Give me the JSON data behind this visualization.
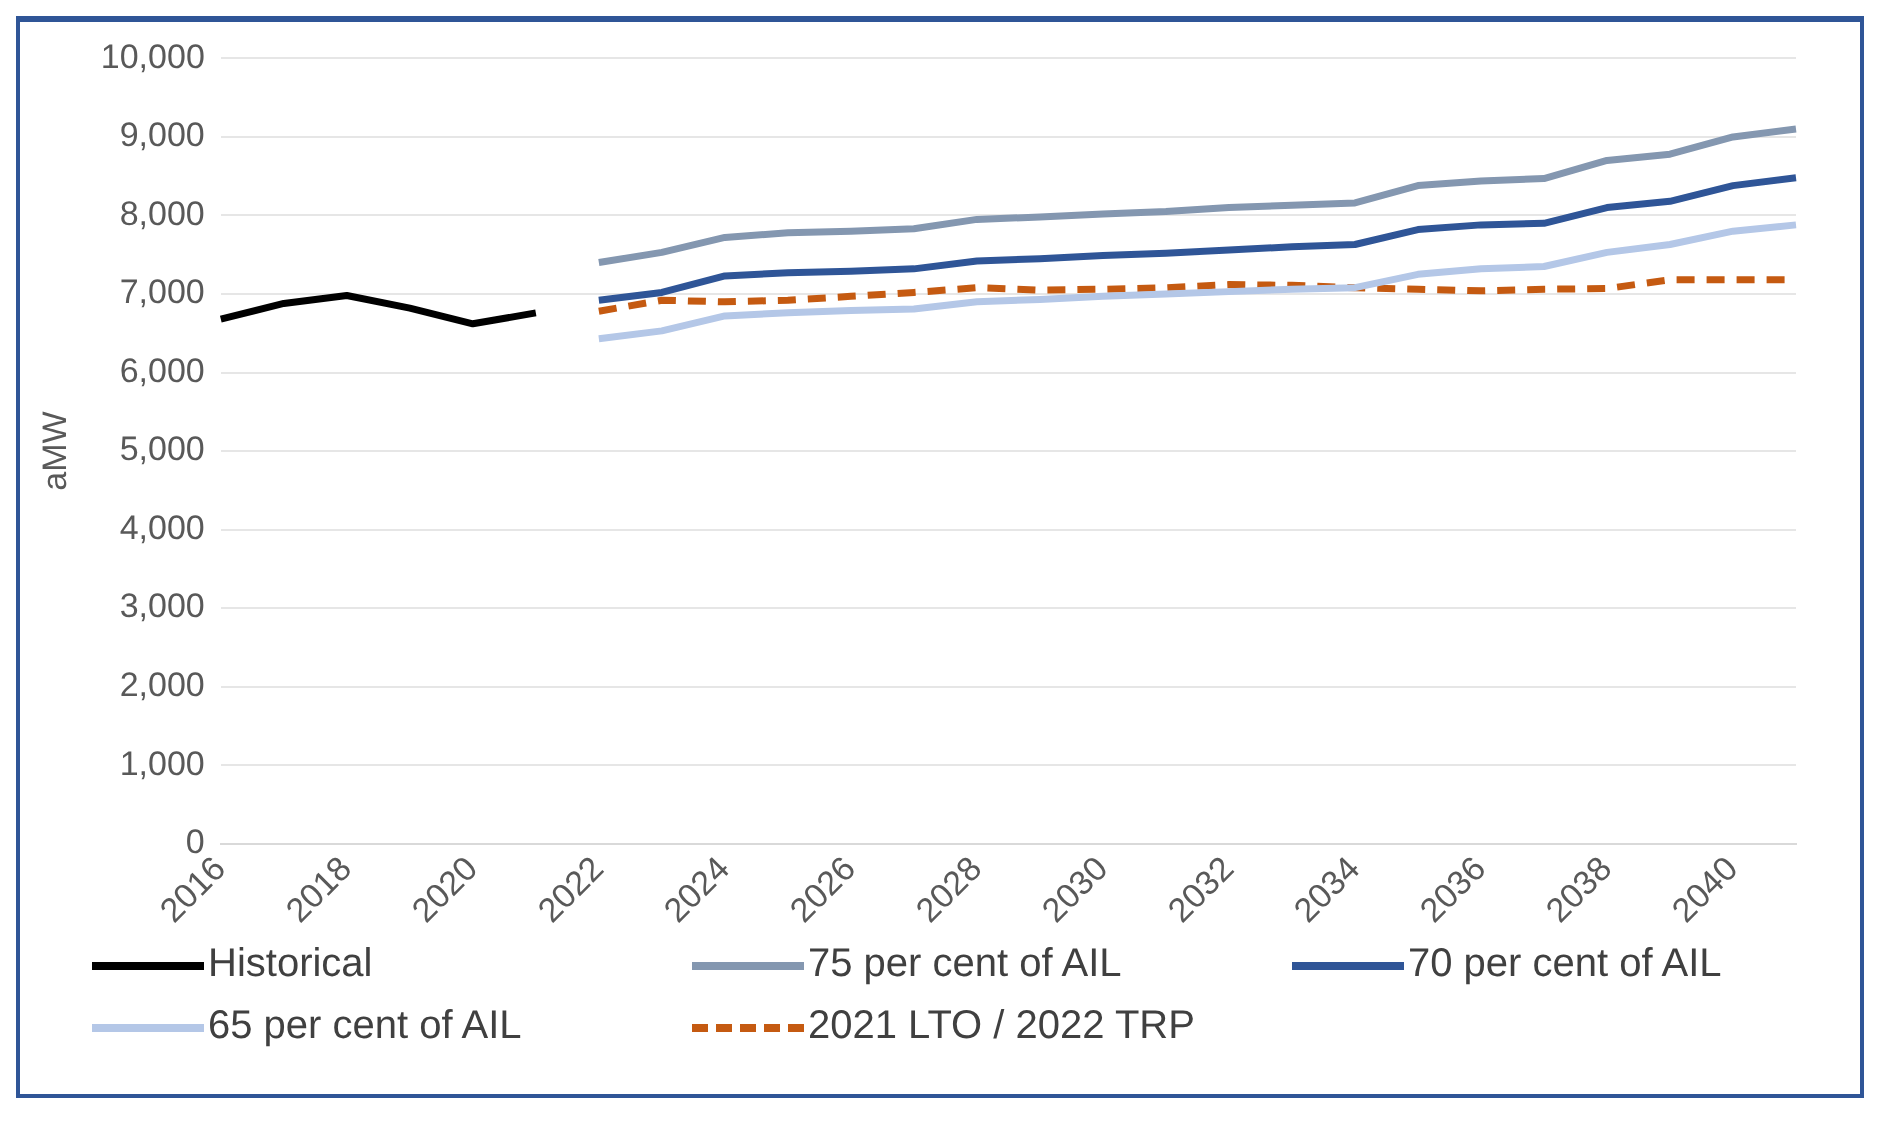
{
  "chart_data": {
    "type": "line",
    "ylabel": "aMW",
    "categories": [
      "2016",
      null,
      "2018",
      null,
      "2020",
      null,
      "2022",
      null,
      "2024",
      null,
      "2026",
      null,
      "2028",
      null,
      "2030",
      null,
      "2032",
      null,
      "2034",
      null,
      "2036",
      null,
      "2038",
      null,
      "2040",
      null
    ],
    "ylim": [
      0,
      10000
    ],
    "yticks": [
      {
        "value": 0,
        "label": "0"
      },
      {
        "value": 1000,
        "label": "1,000"
      },
      {
        "value": 2000,
        "label": "2,000"
      },
      {
        "value": 3000,
        "label": "3,000"
      },
      {
        "value": 4000,
        "label": "4,000"
      },
      {
        "value": 5000,
        "label": "5,000"
      },
      {
        "value": 6000,
        "label": "6,000"
      },
      {
        "value": 7000,
        "label": "7,000"
      },
      {
        "value": 8000,
        "label": "8,000"
      },
      {
        "value": 9000,
        "label": "9,000"
      },
      {
        "value": 10000,
        "label": "10,000"
      }
    ],
    "grid": "y",
    "legend": "bottom",
    "marker": "none",
    "series": [
      {
        "name": "Historical",
        "color": "#000000",
        "values": [
          6680,
          6880,
          6980,
          6820,
          6620,
          6760,
          null,
          null,
          null,
          null,
          null,
          null,
          null,
          null,
          null,
          null,
          null,
          null,
          null,
          null,
          null,
          null,
          null,
          null,
          null,
          null
        ]
      },
      {
        "name": "75 per cent of AIL",
        "color": "#8497b0",
        "values": [
          null,
          null,
          null,
          null,
          null,
          null,
          7400,
          7530,
          7720,
          7780,
          7800,
          7830,
          7950,
          7980,
          8020,
          8050,
          8100,
          8130,
          8160,
          8380,
          8440,
          8470,
          8700,
          8780,
          9000,
          9100
        ]
      },
      {
        "name": "70 per cent of AIL",
        "color": "#2f5597",
        "values": [
          null,
          null,
          null,
          null,
          null,
          null,
          6920,
          7020,
          7230,
          7270,
          7290,
          7320,
          7420,
          7450,
          7490,
          7520,
          7560,
          7600,
          7630,
          7820,
          7880,
          7900,
          8100,
          8180,
          8380,
          8480
        ]
      },
      {
        "name": "65 per cent of AIL",
        "color": "#b4c7e7",
        "values": [
          null,
          null,
          null,
          null,
          null,
          null,
          6430,
          6530,
          6720,
          6760,
          6790,
          6810,
          6900,
          6930,
          6970,
          7000,
          7030,
          7060,
          7080,
          7250,
          7320,
          7350,
          7530,
          7630,
          7800,
          7880
        ]
      },
      {
        "name": "2021 LTO / 2022 TRP",
        "color": "#c55a11",
        "line_style": "dashed",
        "values": [
          null,
          null,
          null,
          null,
          null,
          null,
          6780,
          6920,
          6900,
          6920,
          6970,
          7020,
          7080,
          7050,
          7060,
          7080,
          7120,
          7110,
          7080,
          7060,
          7040,
          7060,
          7070,
          7180,
          7180,
          7180
        ]
      }
    ]
  }
}
